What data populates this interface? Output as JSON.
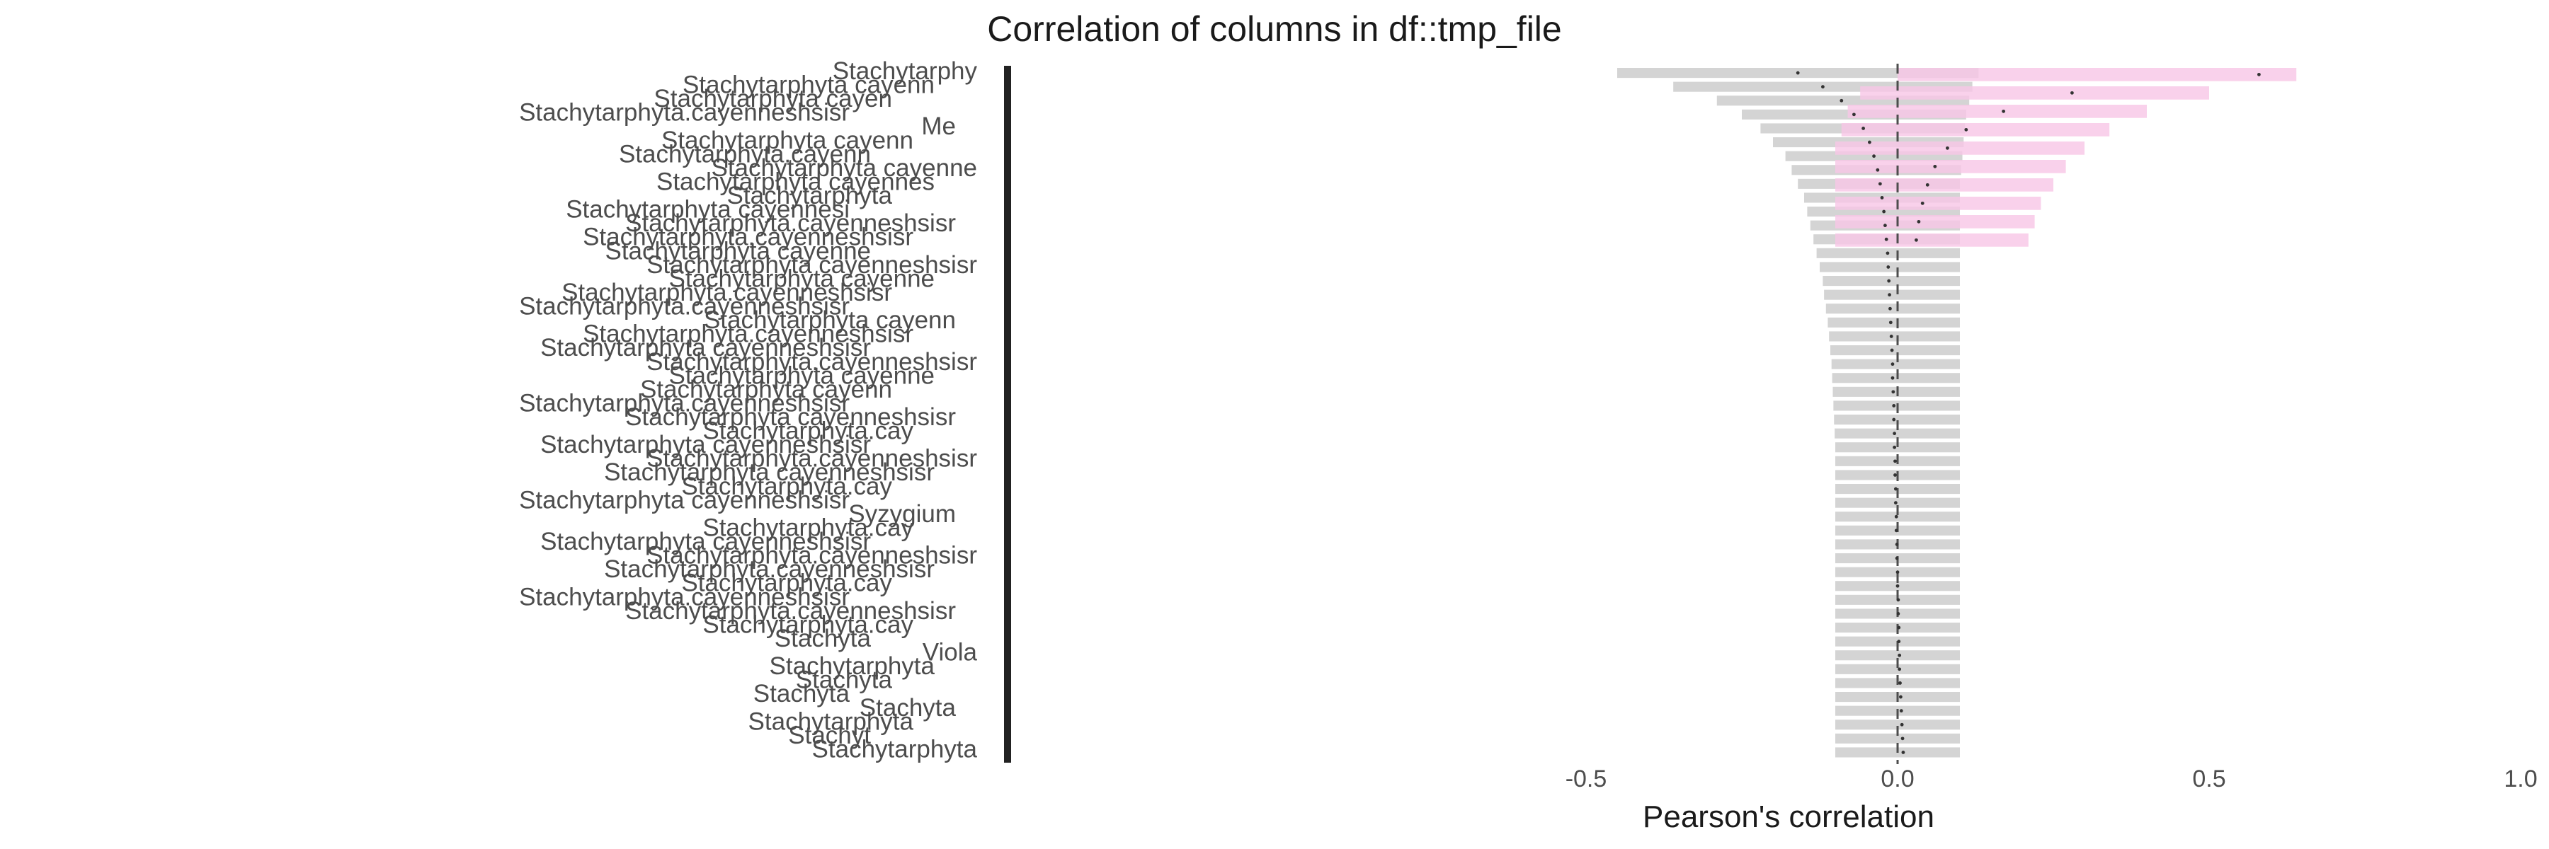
{
  "chart_data": {
    "type": "bar",
    "title": "Correlation of columns in df::tmp_file",
    "subtitle": "",
    "xlabel": "Pearson's correlation",
    "ylabel": "",
    "xlim": [
      -1,
      1
    ],
    "x_ticks": [
      "-0.5",
      "0.0",
      "0.5",
      "1.0"
    ],
    "x_tick_values": [
      -0.5,
      0.0,
      0.5,
      1.0
    ],
    "reference_line": 0,
    "grid": false,
    "legend": "none",
    "colors": {
      "interval_band": "#cccccc",
      "interval_highlight": "#f7c6e6",
      "point": "#333333",
      "reference": "#4d4d4d",
      "labels": "#4d4d4d",
      "axis_bar": "#222222"
    },
    "row_labels": [
      "Stachytarphy",
      "Stachytarphyta cayenn",
      "Stachytarphyta cayen",
      "Stachytarphyta.cayenneshsisr",
      "Me",
      "Stachytarphyta cayenn",
      "Stachytarphyta.cayenn",
      "Stachytarphyta cayenne",
      "Stachytarphyta cayennes",
      "Stachytarphyta",
      "Stachytarphyta cayennesi",
      "Stachytarphyta.cayenneshsisr",
      "Stachytarphyta.cayenneshsisr",
      "Stachytarphyta cayenne",
      "Stachytarphyta cayenneshsisr",
      "Stachytarphyta cayenne",
      "Stachytarphyta.cayenneshsisr",
      "Stachytarphyta.cayenneshsisr",
      "Stachytarphyta cayenn",
      "Stachytarphyta.cayenneshsisr",
      "Stachytarphyta cayenneshsisr",
      "Stachytarphyta.cayenneshsisr",
      "Stachytarphyta cayenne",
      "Stachytarphyta cayenn",
      "Stachytarphyta.cayenneshsisr",
      "Stachytarphyta cayenneshsisr",
      "Stachytarphyta.cay",
      "Stachytarphyta cayenneshsisr",
      "Stachytarphyta.cayenneshsisr",
      "Stachytarphyta cayenneshsisr",
      "Stachytarphyta.cay",
      "Stachytarphyta cayenneshsisr",
      "Syzygium",
      "Stachytarphyta.cay",
      "Stachytarphyta cayenneshsisr",
      "Stachytarphyta.cayenneshsisr",
      "Stachytarphyta.cayenneshsisr",
      "Stachytarphyta.cay",
      "Stachytarphyta.cayenneshsisr",
      "Stachytarphyta.cayenneshsisr",
      "Stachytarphyta.cay",
      "Stachyta",
      "Viola",
      "Stachytarphyta",
      "Stachyta",
      "Stachyta",
      "Stachyta",
      "Stachytarphyta",
      "Stachyt",
      "Stachytarphyta"
    ],
    "series": [
      {
        "estimate": [
          -0.16,
          -0.12,
          -0.09,
          -0.07,
          -0.055,
          -0.045,
          -0.038,
          -0.032,
          -0.028,
          -0.025,
          -0.022,
          -0.02,
          -0.018,
          -0.016,
          -0.015,
          -0.014,
          -0.013,
          -0.012,
          -0.011,
          -0.01,
          -0.009,
          -0.008,
          -0.008,
          -0.007,
          -0.006,
          -0.006,
          -0.005,
          -0.005,
          -0.004,
          -0.004,
          -0.003,
          -0.003,
          -0.002,
          -0.002,
          -0.001,
          -0.001,
          0.0,
          0.0,
          0.001,
          0.001,
          0.002,
          0.002,
          0.003,
          0.003,
          0.004,
          0.005,
          0.006,
          0.007,
          0.008,
          0.009
        ],
        "ci_low": [
          -0.45,
          -0.36,
          -0.29,
          -0.25,
          -0.22,
          -0.2,
          -0.18,
          -0.17,
          -0.16,
          -0.15,
          -0.145,
          -0.14,
          -0.135,
          -0.13,
          -0.125,
          -0.12,
          -0.118,
          -0.115,
          -0.112,
          -0.11,
          -0.108,
          -0.106,
          -0.105,
          -0.104,
          -0.103,
          -0.102,
          -0.101,
          -0.1,
          -0.1,
          -0.1,
          -0.1,
          -0.1,
          -0.1,
          -0.1,
          -0.1,
          -0.1,
          -0.1,
          -0.1,
          -0.1,
          -0.1,
          -0.1,
          -0.1,
          -0.1,
          -0.1,
          -0.1,
          -0.1,
          -0.1,
          -0.1,
          -0.1,
          -0.1
        ],
        "ci_high": [
          0.13,
          0.12,
          0.115,
          0.11,
          0.108,
          0.106,
          0.104,
          0.102,
          0.1,
          0.1,
          0.1,
          0.1,
          0.1,
          0.1,
          0.1,
          0.1,
          0.1,
          0.1,
          0.1,
          0.1,
          0.1,
          0.1,
          0.1,
          0.1,
          0.1,
          0.1,
          0.1,
          0.1,
          0.1,
          0.1,
          0.1,
          0.1,
          0.1,
          0.1,
          0.1,
          0.1,
          0.1,
          0.1,
          0.1,
          0.1,
          0.1,
          0.1,
          0.1,
          0.1,
          0.1,
          0.1,
          0.1,
          0.1,
          0.1,
          0.1
        ]
      },
      {
        "estimate": [
          0.58,
          0.28,
          0.17,
          0.11,
          0.08,
          0.06,
          0.048,
          0.04,
          0.034,
          0.03
        ],
        "ci_low": [
          0.0,
          -0.06,
          -0.08,
          -0.09,
          -0.1,
          -0.1,
          -0.1,
          -0.1,
          -0.1,
          -0.1
        ],
        "ci_high": [
          0.64,
          0.5,
          0.4,
          0.34,
          0.3,
          0.27,
          0.25,
          0.23,
          0.22,
          0.21
        ]
      }
    ]
  }
}
